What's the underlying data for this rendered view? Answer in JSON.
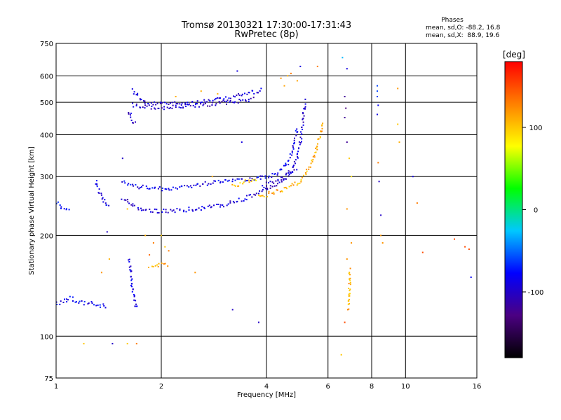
{
  "chart_data": {
    "type": "scatter",
    "title": "Tromsø 20130321 17:30:00-17:31:43",
    "subtitle": "RwPretec (8p)",
    "xlabel": "Frequency [MHz]",
    "ylabel": "Stationary phase Virtual Height [km]",
    "x_scale": "log",
    "y_scale": "log",
    "xlim": [
      1,
      16
    ],
    "ylim": [
      75,
      750
    ],
    "x_ticks": [
      {
        "v": 1,
        "label": "1"
      },
      {
        "v": 2,
        "label": "2"
      },
      {
        "v": 4,
        "label": "4"
      },
      {
        "v": 6,
        "label": "6"
      },
      {
        "v": 8,
        "label": "8"
      },
      {
        "v": 10,
        "label": "10"
      },
      {
        "v": 16,
        "label": "16"
      }
    ],
    "y_ticks": [
      {
        "v": 75,
        "label": "75"
      },
      {
        "v": 100,
        "label": "100"
      },
      {
        "v": 200,
        "label": "200"
      },
      {
        "v": 300,
        "label": "300"
      },
      {
        "v": 400,
        "label": "400"
      },
      {
        "v": 500,
        "label": "500"
      },
      {
        "v": 600,
        "label": "600"
      },
      {
        "v": 750,
        "label": "750"
      }
    ],
    "grid": true,
    "stats": {
      "heading": "Phases",
      "line_o": "mean, sd,O: -88.2, 16.8",
      "line_x": "mean, sd,X:  88.9, 19.6"
    },
    "colorbar": {
      "label": "[deg]",
      "range": [
        -180,
        180
      ],
      "ticks": [
        {
          "v": 100,
          "label": "100"
        },
        {
          "v": 0,
          "label": "0"
        },
        {
          "v": -100,
          "label": "-100"
        }
      ],
      "colors": [
        "#000000",
        "#4b0082",
        "#0000ff",
        "#00c8ff",
        "#00ff00",
        "#ffff00",
        "#ff8000",
        "#ff0000"
      ]
    },
    "series": [
      {
        "kind": "segment",
        "phase": -95,
        "points": [
          [
            1.65,
            545
          ],
          [
            1.8,
            495
          ],
          [
            2.0,
            495
          ],
          [
            2.5,
            500
          ],
          [
            3.0,
            510
          ],
          [
            3.5,
            530
          ],
          [
            3.9,
            545
          ]
        ]
      },
      {
        "kind": "segment",
        "phase": -100,
        "points": [
          [
            1.65,
            490
          ],
          [
            2.0,
            480
          ],
          [
            2.6,
            490
          ],
          [
            3.2,
            500
          ],
          [
            3.7,
            515
          ]
        ]
      },
      {
        "kind": "segment",
        "phase": -100,
        "points": [
          [
            1.62,
            470
          ],
          [
            1.65,
            440
          ],
          [
            1.7,
            430
          ]
        ]
      },
      {
        "kind": "segment",
        "phase": -95,
        "points": [
          [
            1.55,
            260
          ],
          [
            1.65,
            245
          ],
          [
            1.8,
            238
          ],
          [
            2.0,
            236
          ],
          [
            2.5,
            240
          ],
          [
            3.0,
            246
          ],
          [
            3.5,
            258
          ],
          [
            4.0,
            275
          ],
          [
            4.4,
            290
          ],
          [
            4.7,
            310
          ],
          [
            4.9,
            340
          ],
          [
            5.0,
            380
          ],
          [
            5.1,
            440
          ],
          [
            5.15,
            510
          ]
        ]
      },
      {
        "kind": "segment",
        "phase": -85,
        "points": [
          [
            1.55,
            290
          ],
          [
            1.7,
            280
          ],
          [
            2.0,
            275
          ],
          [
            2.5,
            282
          ],
          [
            3.0,
            292
          ],
          [
            3.5,
            295
          ],
          [
            4.0,
            298
          ],
          [
            4.3,
            305
          ],
          [
            4.6,
            330
          ],
          [
            4.8,
            370
          ],
          [
            4.9,
            420
          ]
        ]
      },
      {
        "kind": "segment",
        "phase": 110,
        "points": [
          [
            3.8,
            260
          ],
          [
            4.0,
            265
          ],
          [
            4.5,
            275
          ],
          [
            5.0,
            290
          ],
          [
            5.3,
            320
          ],
          [
            5.5,
            350
          ],
          [
            5.7,
            400
          ],
          [
            5.8,
            440
          ]
        ]
      },
      {
        "kind": "segment",
        "phase": -100,
        "points": [
          [
            3.9,
            280
          ],
          [
            4.2,
            290
          ],
          [
            4.6,
            300
          ],
          [
            4.9,
            315
          ]
        ]
      },
      {
        "kind": "segment",
        "phase": -85,
        "points": [
          [
            1.3,
            290
          ],
          [
            1.35,
            260
          ],
          [
            1.42,
            240
          ]
        ]
      },
      {
        "kind": "segment",
        "phase": -80,
        "points": [
          [
            1.0,
            250
          ],
          [
            1.05,
            240
          ],
          [
            1.1,
            240
          ]
        ]
      },
      {
        "kind": "segment",
        "phase": -80,
        "points": [
          [
            1.0,
            125
          ],
          [
            1.1,
            130
          ],
          [
            1.2,
            125
          ],
          [
            1.3,
            125
          ],
          [
            1.4,
            122
          ]
        ]
      },
      {
        "kind": "segment",
        "phase": 115,
        "points": [
          [
            1.85,
            162
          ],
          [
            2.0,
            163
          ],
          [
            2.1,
            162
          ]
        ]
      },
      {
        "kind": "segment",
        "phase": 100,
        "points": [
          [
            3.2,
            280
          ],
          [
            3.5,
            290
          ],
          [
            3.8,
            292
          ]
        ]
      },
      {
        "kind": "segment",
        "phase": -90,
        "points": [
          [
            1.62,
            170
          ],
          [
            1.65,
            140
          ],
          [
            1.7,
            120
          ]
        ]
      },
      {
        "kind": "segment",
        "phase": 110,
        "points": [
          [
            6.85,
            120
          ],
          [
            6.9,
            135
          ],
          [
            6.95,
            160
          ]
        ]
      },
      {
        "kind": "points",
        "points": [
          [
            4.4,
            590,
            120
          ],
          [
            4.6,
            600,
            110
          ],
          [
            4.7,
            610,
            130
          ],
          [
            4.9,
            580,
            115
          ],
          [
            4.5,
            560,
            115
          ],
          [
            5.6,
            640,
            130
          ],
          [
            5.0,
            640,
            -90
          ],
          [
            3.3,
            620,
            -90
          ],
          [
            2.6,
            540,
            110
          ],
          [
            2.9,
            530,
            110
          ],
          [
            6.6,
            680,
            -30
          ],
          [
            6.7,
            520,
            -120
          ],
          [
            6.75,
            480,
            -130
          ],
          [
            6.7,
            450,
            -120
          ],
          [
            6.8,
            380,
            -120
          ],
          [
            6.9,
            340,
            100
          ],
          [
            6.8,
            630,
            -90
          ],
          [
            7.0,
            300,
            90
          ],
          [
            6.8,
            240,
            120
          ],
          [
            7.0,
            190,
            120
          ],
          [
            6.8,
            170,
            120
          ],
          [
            6.7,
            110,
            150
          ],
          [
            6.55,
            88,
            100
          ],
          [
            8.3,
            560,
            -60
          ],
          [
            8.3,
            540,
            -60
          ],
          [
            8.3,
            520,
            -60
          ],
          [
            8.35,
            490,
            -80
          ],
          [
            8.3,
            460,
            -90
          ],
          [
            8.35,
            330,
            130
          ],
          [
            8.4,
            290,
            -100
          ],
          [
            8.5,
            230,
            -100
          ],
          [
            8.5,
            200,
            120
          ],
          [
            8.6,
            190,
            120
          ],
          [
            9.5,
            550,
            120
          ],
          [
            9.5,
            430,
            100
          ],
          [
            9.6,
            380,
            110
          ],
          [
            10.5,
            300,
            -90
          ],
          [
            10.8,
            250,
            130
          ],
          [
            11.2,
            178,
            150
          ],
          [
            13.8,
            195,
            150
          ],
          [
            14.8,
            185,
            150
          ],
          [
            15.2,
            182,
            150
          ],
          [
            15.4,
            150,
            -80
          ],
          [
            2.8,
            300,
            110
          ],
          [
            3.4,
            380,
            -90
          ],
          [
            2.2,
            520,
            110
          ],
          [
            1.55,
            340,
            -100
          ],
          [
            1.6,
            240,
            100
          ],
          [
            1.45,
            95,
            -100
          ],
          [
            1.6,
            95,
            100
          ],
          [
            1.7,
            95,
            130
          ],
          [
            1.2,
            95,
            100
          ],
          [
            3.2,
            120,
            -100
          ],
          [
            3.8,
            110,
            -100
          ],
          [
            2.5,
            155,
            120
          ],
          [
            2.1,
            180,
            130
          ],
          [
            1.85,
            175,
            140
          ],
          [
            1.9,
            190,
            130
          ],
          [
            1.4,
            205,
            -100
          ],
          [
            1.35,
            155,
            120
          ],
          [
            1.42,
            170,
            110
          ],
          [
            2.0,
            200,
            100
          ],
          [
            2.05,
            185,
            100
          ],
          [
            1.8,
            200,
            110
          ]
        ]
      }
    ]
  }
}
